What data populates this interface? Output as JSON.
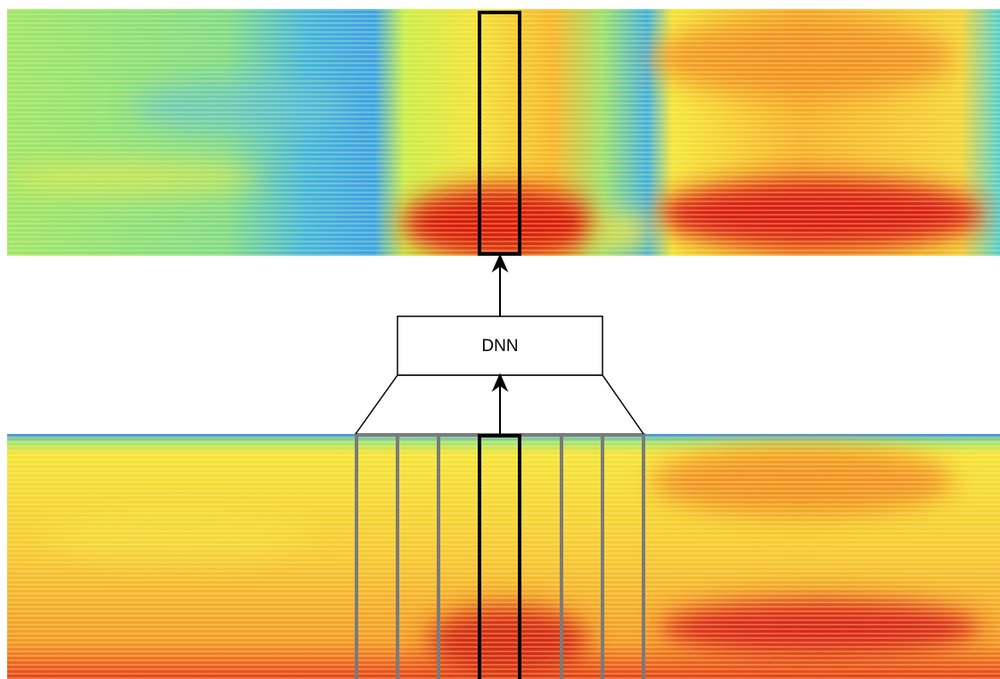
{
  "diagram": {
    "box_label": "DNN"
  }
}
